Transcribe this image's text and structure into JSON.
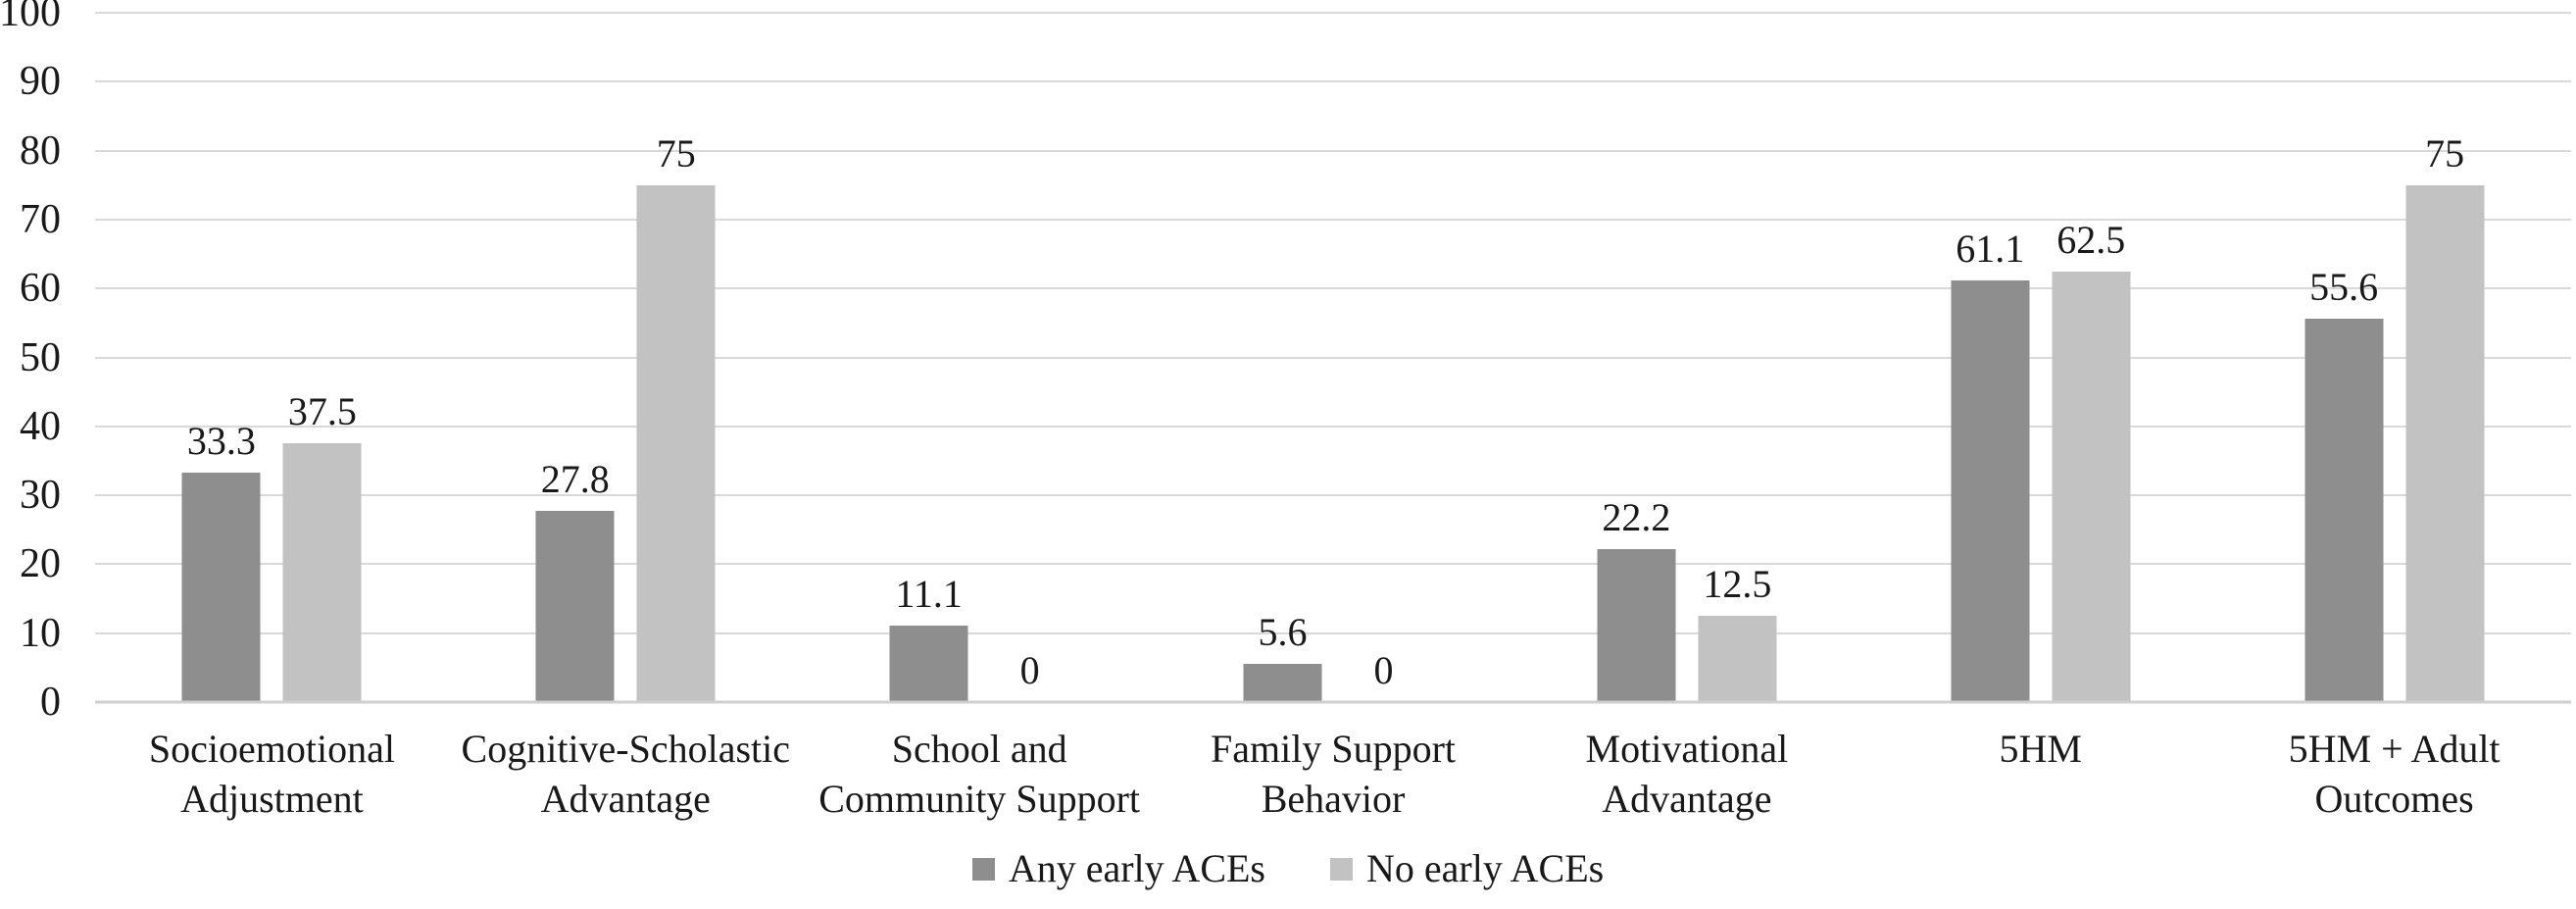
{
  "chart_data": {
    "type": "bar",
    "title": "",
    "xlabel": "",
    "ylabel": "",
    "ylim": [
      0,
      100
    ],
    "yticks": [
      "0",
      "10",
      "20",
      "30",
      "40",
      "50",
      "60",
      "70",
      "80",
      "90",
      "100"
    ],
    "grid": true,
    "legend_position": "bottom-center",
    "categories": [
      "Socioemotional\nAdjustment",
      "Cognitive-Scholastic\nAdvantage",
      "School and\nCommunity Support",
      "Family Support\nBehavior",
      "Motivational\nAdvantage",
      "5HM",
      "5HM + Adult\nOutcomes"
    ],
    "series": [
      {
        "name": "Any early ACEs",
        "color": "#8e8e8e",
        "values": [
          33.3,
          27.8,
          11.1,
          5.6,
          22.2,
          61.1,
          55.6
        ],
        "labels": [
          "33.3",
          "27.8",
          "11.1",
          "5.6",
          "22.2",
          "61.1",
          "55.6"
        ]
      },
      {
        "name": "No early ACEs",
        "color": "#c2c2c2",
        "values": [
          37.5,
          75,
          0,
          0,
          12.5,
          62.5,
          75
        ],
        "labels": [
          "37.5",
          "75",
          "0",
          "0",
          "12.5",
          "62.5",
          "75"
        ]
      }
    ]
  },
  "colors": {
    "background": "#ffffff",
    "gridline": "#d9d9d9",
    "baseline": "#cfcfcf",
    "text": "#191919",
    "series_dark": "#8e8e8e",
    "series_light": "#c2c2c2"
  }
}
